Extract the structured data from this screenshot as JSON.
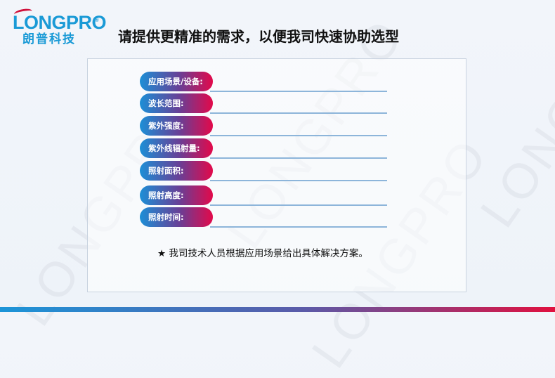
{
  "logo": {
    "brand_en": "LONGPRO",
    "brand_cn": "朗普科技",
    "registered": "®"
  },
  "title": "请提供更精准的需求，以便我司快速协助选型",
  "form": {
    "fields": [
      {
        "label": "应用场景/设备:",
        "value": ""
      },
      {
        "label": "波长范围:",
        "value": ""
      },
      {
        "label": "紫外强度:",
        "value": ""
      },
      {
        "label": "紫外线辐射量:",
        "value": ""
      },
      {
        "label": "照射面积:",
        "value": ""
      },
      {
        "label": "照射高度:",
        "value": ""
      },
      {
        "label": "照射时间:",
        "value": ""
      }
    ]
  },
  "note": "★ 我司技术人员根据应用场景给出具体解决方案。",
  "watermark": "LONGPRO",
  "colors": {
    "brand_blue": "#1a9ad6",
    "brand_red": "#e2094a"
  }
}
